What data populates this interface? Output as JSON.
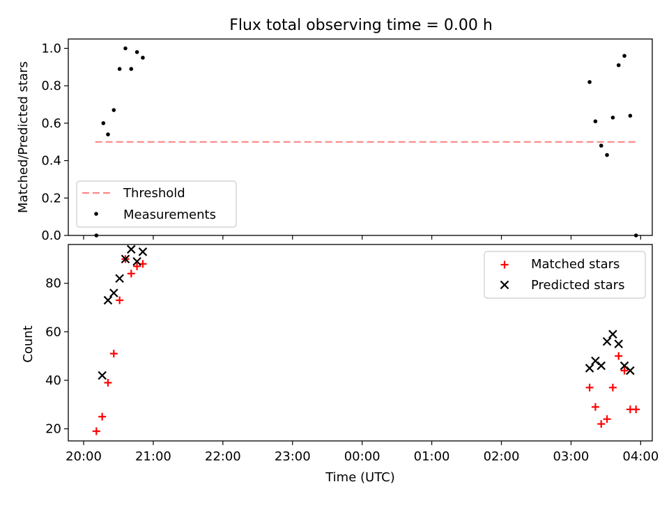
{
  "chart_data": [
    {
      "type": "scatter",
      "title": "Flux total observing time = 0.00 h",
      "xlabel": "",
      "ylabel": "Matched/Predicted stars",
      "xlim": [
        "20:00",
        "04:10"
      ],
      "ylim": [
        0,
        1.05
      ],
      "yticks": [
        "0.0",
        "0.2",
        "0.4",
        "0.6",
        "0.8",
        "1.0"
      ],
      "grid": false,
      "legend": "lower-left",
      "threshold": {
        "name": "Threshold",
        "y": 0.5,
        "x_start": "20:10",
        "x_end": "03:58",
        "color": "#ff7f7f",
        "style": "dashed"
      },
      "series": [
        {
          "name": "Measurements",
          "color": "#000000",
          "marker": "dot",
          "points": [
            [
              "20:11",
              0.0
            ],
            [
              "20:17",
              0.6
            ],
            [
              "20:21",
              0.54
            ],
            [
              "20:26",
              0.67
            ],
            [
              "20:31",
              0.89
            ],
            [
              "20:36",
              1.0
            ],
            [
              "20:41",
              0.89
            ],
            [
              "20:46",
              0.98
            ],
            [
              "20:51",
              0.95
            ],
            [
              "03:16",
              0.82
            ],
            [
              "03:21",
              0.61
            ],
            [
              "03:26",
              0.48
            ],
            [
              "03:31",
              0.43
            ],
            [
              "03:36",
              0.63
            ],
            [
              "03:41",
              0.91
            ],
            [
              "03:46",
              0.96
            ],
            [
              "03:51",
              0.64
            ],
            [
              "03:56",
              0.0
            ]
          ]
        }
      ]
    },
    {
      "type": "scatter",
      "title": "",
      "xlabel": "Time (UTC)",
      "ylabel": "Count",
      "xlim": [
        "20:00",
        "04:10"
      ],
      "ylim": [
        15,
        96
      ],
      "yticks": [
        "20",
        "40",
        "60",
        "80"
      ],
      "xticks": [
        "20:00",
        "21:00",
        "22:00",
        "23:00",
        "00:00",
        "01:00",
        "02:00",
        "03:00",
        "04:00"
      ],
      "grid": false,
      "legend": "top-right",
      "series": [
        {
          "name": "Matched stars",
          "color": "#ff0000",
          "marker": "plus",
          "points": [
            [
              "20:11",
              19
            ],
            [
              "20:16",
              25
            ],
            [
              "20:21",
              39
            ],
            [
              "20:26",
              51
            ],
            [
              "20:31",
              73
            ],
            [
              "20:36",
              90
            ],
            [
              "20:41",
              84
            ],
            [
              "20:46",
              87
            ],
            [
              "20:51",
              88
            ],
            [
              "03:16",
              37
            ],
            [
              "03:21",
              29
            ],
            [
              "03:26",
              22
            ],
            [
              "03:31",
              24
            ],
            [
              "03:36",
              37
            ],
            [
              "03:41",
              50
            ],
            [
              "03:46",
              44
            ],
            [
              "03:51",
              28
            ],
            [
              "03:56",
              28
            ]
          ]
        },
        {
          "name": "Predicted stars",
          "color": "#000000",
          "marker": "x",
          "points": [
            [
              "20:16",
              42
            ],
            [
              "20:21",
              73
            ],
            [
              "20:26",
              76
            ],
            [
              "20:31",
              82
            ],
            [
              "20:36",
              90
            ],
            [
              "20:41",
              94
            ],
            [
              "20:46",
              89
            ],
            [
              "20:51",
              93
            ],
            [
              "03:16",
              45
            ],
            [
              "03:21",
              48
            ],
            [
              "03:26",
              46
            ],
            [
              "03:31",
              56
            ],
            [
              "03:36",
              59
            ],
            [
              "03:41",
              55
            ],
            [
              "03:46",
              46
            ],
            [
              "03:51",
              44
            ]
          ]
        }
      ]
    }
  ]
}
